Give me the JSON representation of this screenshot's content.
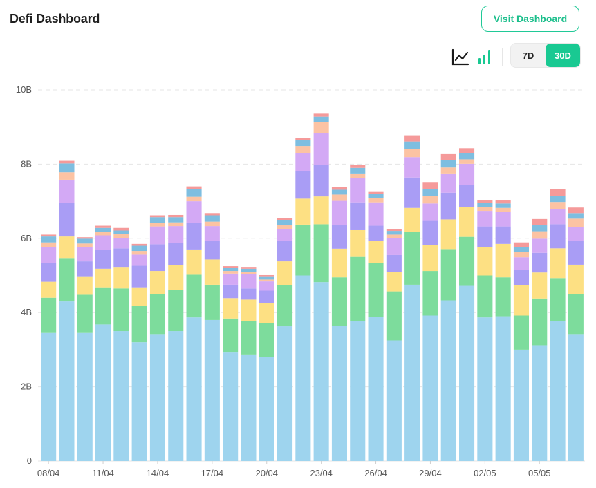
{
  "header": {
    "title": "Defi Dashboard",
    "visit_label": "Visit Dashboard"
  },
  "controls": {
    "line_icon": "line-chart-icon",
    "bar_icon": "bar-chart-icon",
    "ranges": [
      "7D",
      "30D"
    ],
    "active_range": "30D",
    "accent": "#19c992"
  },
  "chart_data": {
    "type": "bar",
    "stacked": true,
    "ylim": [
      0,
      10
    ],
    "yticks": [
      "0",
      "2B",
      "4B",
      "6B",
      "8B",
      "10B"
    ],
    "ytick_values": [
      0,
      2,
      4,
      6,
      8,
      10
    ],
    "grid": true,
    "xtick_labels": [
      "08/04",
      "11/04",
      "14/04",
      "17/04",
      "20/04",
      "23/04",
      "26/04",
      "29/04",
      "02/05",
      "05/05"
    ],
    "xtick_indices": [
      0,
      3,
      6,
      9,
      12,
      15,
      18,
      21,
      24,
      27
    ],
    "colors": [
      "#9ed4ee",
      "#7ddc9c",
      "#fde083",
      "#a99df5",
      "#d3a9f5",
      "#fcc3a3",
      "#7ebee0",
      "#f59a9a"
    ],
    "categories": [
      "08/04",
      "09/04",
      "10/04",
      "11/04",
      "12/04",
      "13/04",
      "14/04",
      "15/04",
      "16/04",
      "17/04",
      "18/04",
      "19/04",
      "20/04",
      "21/04",
      "22/04",
      "23/04",
      "24/04",
      "25/04",
      "26/04",
      "27/04",
      "28/04",
      "29/04",
      "30/04",
      "01/05",
      "02/05",
      "03/05",
      "04/05",
      "05/05",
      "06/05",
      "07/05"
    ],
    "series": [
      {
        "values": [
          3.45,
          4.3,
          3.45,
          3.68,
          3.5,
          3.2,
          3.42,
          3.5,
          3.87,
          3.8,
          2.94,
          2.87,
          2.81,
          3.63,
          5.0,
          4.82,
          3.65,
          3.77,
          3.89,
          3.25,
          4.75,
          3.92,
          4.33,
          4.72,
          3.87,
          3.9,
          3.0,
          3.12,
          3.77,
          3.42
        ]
      },
      {
        "values": [
          0.95,
          1.17,
          1.03,
          1.0,
          1.15,
          0.98,
          1.08,
          1.1,
          1.15,
          0.95,
          0.9,
          0.9,
          0.9,
          1.1,
          1.37,
          1.56,
          1.3,
          1.73,
          1.45,
          1.32,
          1.42,
          1.2,
          1.38,
          1.32,
          1.13,
          1.05,
          0.92,
          1.26,
          1.16,
          1.07
        ]
      },
      {
        "values": [
          0.43,
          0.58,
          0.48,
          0.5,
          0.58,
          0.5,
          0.62,
          0.68,
          0.68,
          0.68,
          0.55,
          0.58,
          0.55,
          0.65,
          0.7,
          0.75,
          0.77,
          0.72,
          0.6,
          0.53,
          0.65,
          0.7,
          0.8,
          0.8,
          0.77,
          0.9,
          0.82,
          0.7,
          0.8,
          0.8
        ]
      },
      {
        "values": [
          0.5,
          0.9,
          0.42,
          0.5,
          0.5,
          0.58,
          0.72,
          0.6,
          0.72,
          0.5,
          0.36,
          0.3,
          0.33,
          0.55,
          0.74,
          0.85,
          0.63,
          0.75,
          0.4,
          0.45,
          0.82,
          0.65,
          0.72,
          0.6,
          0.55,
          0.47,
          0.4,
          0.53,
          0.65,
          0.64
        ]
      },
      {
        "values": [
          0.43,
          0.63,
          0.38,
          0.4,
          0.28,
          0.3,
          0.48,
          0.45,
          0.58,
          0.4,
          0.3,
          0.38,
          0.25,
          0.32,
          0.48,
          0.85,
          0.66,
          0.66,
          0.63,
          0.45,
          0.55,
          0.47,
          0.5,
          0.57,
          0.42,
          0.4,
          0.35,
          0.38,
          0.4,
          0.38
        ]
      },
      {
        "values": [
          0.13,
          0.2,
          0.1,
          0.1,
          0.1,
          0.1,
          0.1,
          0.1,
          0.12,
          0.12,
          0.07,
          0.07,
          0.05,
          0.1,
          0.2,
          0.3,
          0.17,
          0.1,
          0.12,
          0.1,
          0.22,
          0.2,
          0.18,
          0.12,
          0.1,
          0.1,
          0.15,
          0.2,
          0.2,
          0.22
        ]
      },
      {
        "values": [
          0.16,
          0.24,
          0.13,
          0.1,
          0.1,
          0.14,
          0.15,
          0.14,
          0.2,
          0.17,
          0.08,
          0.08,
          0.07,
          0.14,
          0.16,
          0.15,
          0.13,
          0.17,
          0.1,
          0.1,
          0.2,
          0.19,
          0.2,
          0.17,
          0.12,
          0.12,
          0.12,
          0.16,
          0.17,
          0.15
        ]
      },
      {
        "values": [
          0.05,
          0.07,
          0.04,
          0.06,
          0.07,
          0.05,
          0.05,
          0.06,
          0.08,
          0.06,
          0.05,
          0.05,
          0.05,
          0.06,
          0.06,
          0.08,
          0.08,
          0.08,
          0.06,
          0.05,
          0.15,
          0.17,
          0.16,
          0.13,
          0.06,
          0.08,
          0.13,
          0.17,
          0.18,
          0.15
        ]
      }
    ]
  }
}
